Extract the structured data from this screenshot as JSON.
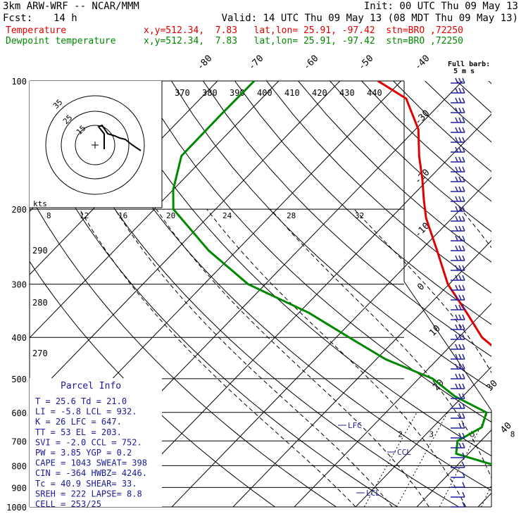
{
  "header": {
    "model": "3km ARW-WRF -- NCAR/MMM",
    "init": "Init: 00 UTC Thu 09 May 13",
    "fcst_label": "Fcst:",
    "fcst_value": "14 h",
    "valid": "Valid: 14 UTC Thu 09 May 13 (08 MDT Thu 09 May 13)",
    "temp_label": "Temperature",
    "temp_info": "x,y=512.34,  7.83   lat,lon= 25.91, -97.42  stn=BRO ,72250",
    "dew_label": "Dewpoint temperature",
    "dew_info": "x,y=512.34,  7.83   lat,lon= 25.91, -97.42  stn=BRO ,72250"
  },
  "barb_label": "Full barb:",
  "barb_value": "5 m s",
  "hodograph": {
    "unit": "kts",
    "ring_labels": [
      "35",
      "25",
      "15"
    ],
    "speed_ticks": [
      "8",
      "12",
      "16",
      "20",
      "24",
      "28",
      "32"
    ]
  },
  "chart_data": {
    "type": "line",
    "title": "",
    "pressure_levels": [
      100,
      200,
      300,
      400,
      500,
      600,
      700,
      800,
      900,
      1000
    ],
    "pressure_labels": [
      "100",
      "200",
      "300",
      "400",
      "500",
      "600",
      "700",
      "800",
      "900",
      "1000"
    ],
    "isotherm_labels": [
      "-80",
      "-70",
      "-60",
      "-50",
      "-40",
      "-30",
      "-20",
      "-10",
      "0",
      "10",
      "20",
      "30",
      "40"
    ],
    "theta_labels_top": [
      "370",
      "380",
      "390",
      "400",
      "410",
      "420",
      "430",
      "440"
    ],
    "theta_labels_left": [
      "290",
      "280",
      "270"
    ],
    "mixing_ratio_labels": [
      "2",
      "3",
      "5",
      "8",
      "12",
      "20"
    ],
    "series": [
      {
        "name": "Temperature",
        "color": "#e00000",
        "points": [
          [
            100,
            -73.8
          ],
          [
            110,
            -66.4
          ],
          [
            130,
            -59.5
          ],
          [
            150,
            -55.2
          ],
          [
            170,
            -51.0
          ],
          [
            190,
            -47.5
          ],
          [
            210,
            -44.2
          ],
          [
            250,
            -37.3
          ],
          [
            300,
            -30.2
          ],
          [
            350,
            -22.6
          ],
          [
            400,
            -16.2
          ],
          [
            450,
            -8.5
          ],
          [
            500,
            -3.8
          ],
          [
            550,
            2.6
          ],
          [
            600,
            7.8
          ],
          [
            650,
            12.6
          ],
          [
            700,
            15.8
          ],
          [
            750,
            19.8
          ],
          [
            800,
            19.7
          ],
          [
            850,
            20.6
          ],
          [
            900,
            22.1
          ],
          [
            950,
            22.9
          ],
          [
            1000,
            25.6
          ]
        ]
      },
      {
        "name": "Dewpoint temperature",
        "color": "#008800",
        "points": [
          [
            100,
            -94.0
          ],
          [
            120,
            -94.1
          ],
          [
            150,
            -94.0
          ],
          [
            180,
            -90.0
          ],
          [
            200,
            -86.9
          ],
          [
            250,
            -74.6
          ],
          [
            300,
            -62.8
          ],
          [
            350,
            -48.4
          ],
          [
            400,
            -37.9
          ],
          [
            450,
            -28.5
          ],
          [
            500,
            -17.7
          ],
          [
            550,
            -11.3
          ],
          [
            600,
            -3.6
          ],
          [
            650,
            -2.0
          ],
          [
            700,
            -3.8
          ],
          [
            750,
            -2.0
          ],
          [
            800,
            6.4
          ],
          [
            850,
            14.4
          ],
          [
            900,
            18.4
          ],
          [
            950,
            19.3
          ],
          [
            1000,
            21.0
          ]
        ]
      }
    ],
    "annotations": [
      "LFC",
      "CCL",
      "LCL"
    ]
  },
  "parcel": {
    "title": "Parcel Info",
    "rows": [
      "T  =   25.6  Td =  21.0",
      "LI =   -5.8  LCL =  932.",
      "K  =     26  LFC =  647.",
      "TT =     53  EL  =  203.",
      "SVI =  -2.0  CCL =  752.",
      "PW =   3.85  YGP =   0.2",
      "CAPE =  1043  SWEAT=  398",
      "CIN =  -364  HWBZ= 4246.",
      "Tc =   40.9  SHEAR=  33.",
      "SREH =   222  LAPSE=   8.8",
      "CELL = 253/25"
    ]
  }
}
